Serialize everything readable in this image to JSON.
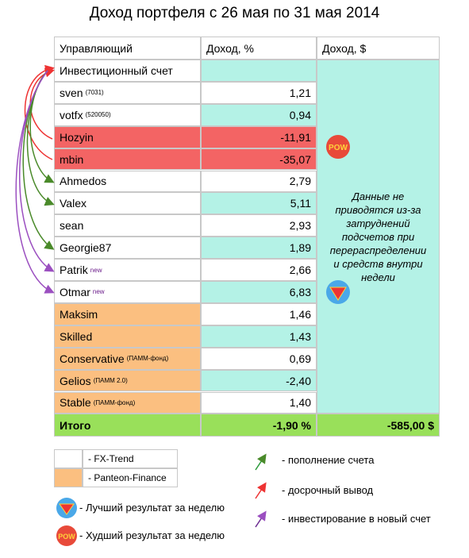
{
  "title": "Доход портфеля с 26 мая по 31 мая 2014",
  "table": {
    "headers": [
      "Управляющий",
      "Доход, %",
      "Доход, $"
    ],
    "rows": [
      {
        "name": "Инвестиционный счет"
      },
      {
        "name": "sven",
        "sup": "(7031)",
        "value": "1,21"
      },
      {
        "name": "votfx",
        "sup": "(520050)",
        "value": "0,94"
      },
      {
        "name": "Hozyin",
        "value": "-11,91",
        "color": "#f36464"
      },
      {
        "name": "mbin",
        "value": "-35,07",
        "color": "#f36464"
      },
      {
        "name": "Ahmedos",
        "value": "2,79"
      },
      {
        "name": "Valex",
        "value": "5,11"
      },
      {
        "name": "sean",
        "value": "2,93"
      },
      {
        "name": "Georgie87",
        "value": "1,89"
      },
      {
        "name": "Patrik",
        "sup": "new",
        "value": "2,66"
      },
      {
        "name": "Otmar",
        "sup": "new",
        "value": "6,83"
      },
      {
        "name": "Maksim",
        "value": "1,46",
        "color": "#fbbf80"
      },
      {
        "name": "Skilled",
        "value": "1,43",
        "color": "#fbbf80"
      },
      {
        "name": "Conservative",
        "sup": "(ПАММ-фонд)",
        "value": "0,69",
        "color": "#fbbf80"
      },
      {
        "name": "Gelios",
        "sup": "(ПАММ 2.0)",
        "value": "-2,40",
        "color": "#fbbf80"
      },
      {
        "name": "Stable",
        "sup": "(ПАММ-фонд)",
        "value": "1,40",
        "color": "#fbbf80"
      }
    ],
    "note": "Данные не приводятся из-за затруднений подсчетов при перераспределении и средств внутри недели",
    "total": [
      "Итого",
      "-1,90 %",
      "-585,00 $"
    ]
  },
  "legend": {
    "groups": [
      "- FX-Trend",
      "- Panteon-Finance"
    ],
    "icons": [
      "- Лучший результат за неделю",
      "- Худший результат за неделю"
    ],
    "arrows": [
      "-  пополнение счета",
      "-  досрочный вывод",
      "-  инвестирование в новый счет"
    ]
  }
}
